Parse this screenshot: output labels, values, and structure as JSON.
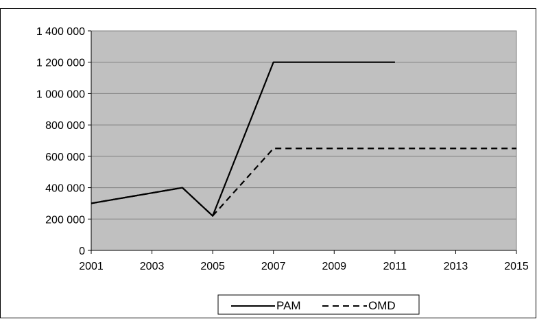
{
  "chart_data": {
    "type": "line",
    "title": "",
    "xlabel": "",
    "ylabel": "",
    "xlim": [
      2001,
      2015
    ],
    "ylim": [
      0,
      1400000
    ],
    "x_ticks": [
      2001,
      2003,
      2005,
      2007,
      2009,
      2011,
      2013,
      2015
    ],
    "y_ticks": [
      0,
      200000,
      400000,
      600000,
      800000,
      1000000,
      1200000,
      1400000
    ],
    "x_tick_labels": [
      "2001",
      "2003",
      "2005",
      "2007",
      "2009",
      "2011",
      "2013",
      "2015"
    ],
    "y_tick_labels": [
      "0",
      "200 000",
      "400 000",
      "600 000",
      "800 000",
      "1 000 000",
      "1 200 000",
      "1 400 000"
    ],
    "grid": "horizontal",
    "legend": "bottom",
    "plot_background": "#c0c0c0",
    "series": [
      {
        "name": "PAM",
        "style": "solid",
        "color": "#000000",
        "points": [
          [
            2001,
            300000
          ],
          [
            2004,
            400000
          ],
          [
            2005,
            220000
          ],
          [
            2007,
            1200000
          ],
          [
            2011,
            1200000
          ]
        ]
      },
      {
        "name": "OMD",
        "style": "dashed",
        "color": "#000000",
        "points": [
          [
            2001,
            300000
          ],
          [
            2004,
            400000
          ],
          [
            2005,
            220000
          ],
          [
            2007,
            650000
          ],
          [
            2015,
            650000
          ]
        ]
      }
    ]
  }
}
